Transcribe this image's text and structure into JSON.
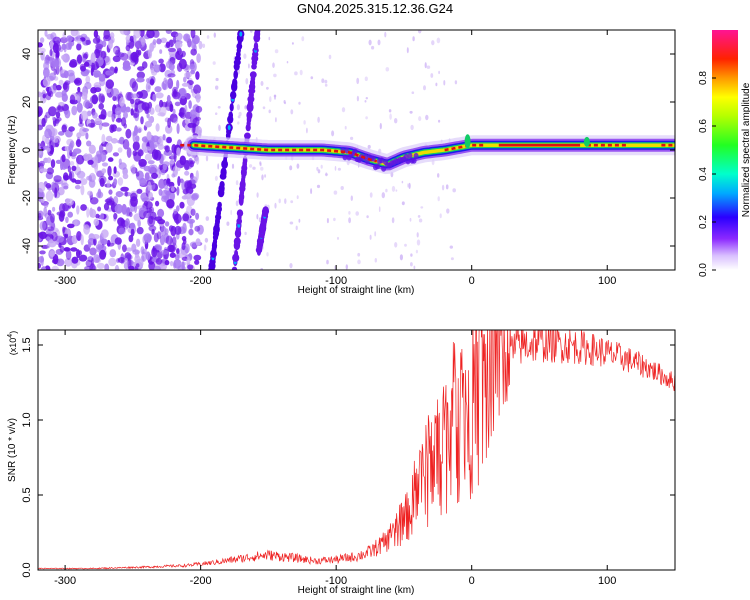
{
  "title": "GN04.2025.315.12.36.G24",
  "colors": {
    "snr_line": "#ee2222",
    "ridge_core": "#dd1111",
    "purple": "#6a14e6",
    "light_purple": "#c8aaf5"
  },
  "chart_data": [
    {
      "id": "spectrogram",
      "type": "heatmap",
      "xlabel": "Height of straight line (km)",
      "ylabel": "Frequency (Hz)",
      "xlim": [
        -320,
        150
      ],
      "ylim": [
        -50,
        50
      ],
      "xticks": [
        -300,
        -200,
        -100,
        0,
        100
      ],
      "yticks": [
        -40,
        -20,
        0,
        20,
        40
      ],
      "colorbar": {
        "label": "Normalized spectral amplitude",
        "range": [
          0.0,
          1.0
        ],
        "ticks": [
          0.0,
          0.2,
          0.4,
          0.6,
          0.8
        ],
        "colormap": [
          "#ffffff",
          "#cc99ff",
          "#7a00ff",
          "#0000ff",
          "#00c8ff",
          "#00ff80",
          "#b4ff00",
          "#ffff00",
          "#ff8c00",
          "#ff0000",
          "#ff1493"
        ]
      },
      "ridge": {
        "start_km": -205,
        "points": [
          [
            -205,
            2
          ],
          [
            -150,
            0
          ],
          [
            -110,
            0
          ],
          [
            -90,
            -1
          ],
          [
            -75,
            -4
          ],
          [
            -62,
            -6
          ],
          [
            -50,
            -3
          ],
          [
            -35,
            -1
          ],
          [
            -20,
            0
          ],
          [
            0,
            2
          ],
          [
            150,
            2
          ]
        ],
        "strong_segments_km": [
          [
            -215,
            -70
          ],
          [
            -20,
            10
          ],
          [
            20,
            80
          ],
          [
            85,
            115
          ],
          [
            140,
            150
          ]
        ]
      },
      "streaks": [
        {
          "x": [
            -192,
            -170
          ],
          "y": [
            -50,
            50
          ]
        },
        {
          "x": [
            -175,
            -158
          ],
          "y": [
            -50,
            50
          ]
        },
        {
          "x": [
            -157,
            -152
          ],
          "y": [
            -42,
            -25
          ]
        }
      ],
      "noise": {
        "x_range": [
          -320,
          -200
        ],
        "amplitude": "0.1-0.3"
      }
    },
    {
      "id": "snr",
      "type": "line",
      "xlabel": "Height of straight line (km)",
      "ylabel": "SNR (10 * v/v)",
      "scale_label": "(x10",
      "scale_exponent": "4",
      "xlim": [
        -320,
        150
      ],
      "ylim": [
        0,
        1.6
      ],
      "xticks": [
        -300,
        -200,
        -100,
        0,
        100
      ],
      "yticks": [
        0.0,
        0.5,
        1.0,
        1.5
      ],
      "ytick_labels": [
        "0.0",
        "0.5",
        "1.0",
        "1.5"
      ],
      "envelope": [
        [
          -320,
          0.01
        ],
        [
          -280,
          0.01
        ],
        [
          -240,
          0.02
        ],
        [
          -210,
          0.03
        ],
        [
          -190,
          0.05
        ],
        [
          -175,
          0.07
        ],
        [
          -160,
          0.09
        ],
        [
          -150,
          0.1
        ],
        [
          -130,
          0.08
        ],
        [
          -115,
          0.06
        ],
        [
          -100,
          0.07
        ],
        [
          -85,
          0.09
        ],
        [
          -75,
          0.12
        ],
        [
          -65,
          0.18
        ],
        [
          -55,
          0.25
        ],
        [
          -45,
          0.4
        ],
        [
          -35,
          0.6
        ],
        [
          -25,
          0.8
        ],
        [
          -15,
          0.95
        ],
        [
          -5,
          1.05
        ],
        [
          5,
          1.15
        ],
        [
          15,
          1.3
        ],
        [
          25,
          1.42
        ],
        [
          35,
          1.5
        ],
        [
          50,
          1.52
        ],
        [
          70,
          1.5
        ],
        [
          90,
          1.47
        ],
        [
          110,
          1.42
        ],
        [
          130,
          1.35
        ],
        [
          150,
          1.25
        ]
      ],
      "noise_fraction": [
        [
          -320,
          0.3
        ],
        [
          -60,
          0.4
        ],
        [
          -30,
          0.6
        ],
        [
          15,
          0.55
        ],
        [
          30,
          0.1
        ],
        [
          150,
          0.05
        ]
      ]
    }
  ]
}
